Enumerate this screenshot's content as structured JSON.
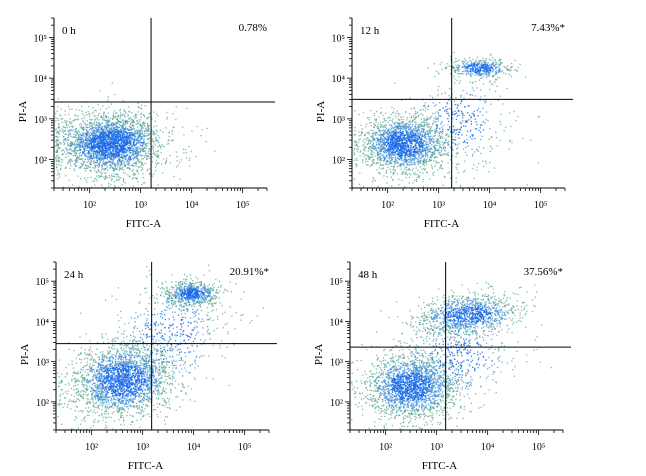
{
  "chart_data": [
    {
      "type": "scatter",
      "panel_label": "0 h",
      "percentage_label": "0.78%",
      "xlabel": "FITC-A",
      "ylabel": "PI-A",
      "x_scale": "log",
      "y_scale": "log",
      "xlim": [
        20,
        300000
      ],
      "ylim": [
        20,
        300000
      ],
      "x_ticks": [
        "10²",
        "10³",
        "10⁴",
        "10⁵"
      ],
      "y_ticks": [
        "10²",
        "10³",
        "10⁴",
        "10⁵"
      ],
      "x_tick_values": [
        100,
        1000,
        10000,
        100000
      ],
      "y_tick_values": [
        100,
        1000,
        10000,
        100000
      ],
      "gate": {
        "x": 1600,
        "y": 2600
      },
      "upper_right_percent": 0.78,
      "populations": [
        {
          "cx": 250,
          "cy": 250,
          "sx": 0.45,
          "sy": 0.35,
          "n": 2400,
          "rho": 0.0
        },
        {
          "cx": 250,
          "cy": 250,
          "sx": 0.75,
          "sy": 0.5,
          "n": 500,
          "rho": 0.0
        }
      ]
    },
    {
      "type": "scatter",
      "panel_label": "12 h",
      "percentage_label": "7.43%*",
      "xlabel": "FITC-A",
      "ylabel": "PI-A",
      "x_scale": "log",
      "y_scale": "log",
      "xlim": [
        20,
        300000
      ],
      "ylim": [
        20,
        300000
      ],
      "x_ticks": [
        "10²",
        "10³",
        "10⁴",
        "10⁵"
      ],
      "y_ticks": [
        "10²",
        "10³",
        "10⁴",
        "10⁵"
      ],
      "x_tick_values": [
        100,
        1000,
        10000,
        100000
      ],
      "y_tick_values": [
        100,
        1000,
        10000,
        100000
      ],
      "gate": {
        "x": 1800,
        "y": 3000
      },
      "upper_right_percent": 7.43,
      "populations": [
        {
          "cx": 200,
          "cy": 250,
          "sx": 0.42,
          "sy": 0.35,
          "n": 2000,
          "rho": 0.0
        },
        {
          "cx": 6000,
          "cy": 18000,
          "sx": 0.3,
          "sy": 0.12,
          "n": 450,
          "rho": 0.0
        },
        {
          "cx": 2500,
          "cy": 800,
          "sx": 0.55,
          "sy": 0.6,
          "n": 350,
          "rho": 0.0
        }
      ]
    },
    {
      "type": "scatter",
      "panel_label": "24 h",
      "percentage_label": "20.91%*",
      "xlabel": "FITC-A",
      "ylabel": "PI-A",
      "x_scale": "log",
      "y_scale": "log",
      "xlim": [
        20,
        300000
      ],
      "ylim": [
        20,
        300000
      ],
      "x_ticks": [
        "10²",
        "10³",
        "10⁴",
        "10⁵"
      ],
      "y_ticks": [
        "10²",
        "10³",
        "10⁴",
        "10⁵"
      ],
      "x_tick_values": [
        100,
        1000,
        10000,
        100000
      ],
      "y_tick_values": [
        100,
        1000,
        10000,
        100000
      ],
      "gate": {
        "x": 1500,
        "y": 2800
      },
      "upper_right_percent": 20.91,
      "populations": [
        {
          "cx": 400,
          "cy": 350,
          "sx": 0.5,
          "sy": 0.45,
          "n": 2300,
          "rho": 0.2
        },
        {
          "cx": 9000,
          "cy": 50000,
          "sx": 0.25,
          "sy": 0.15,
          "n": 650,
          "rho": 0.0
        },
        {
          "cx": 3000,
          "cy": 4000,
          "sx": 0.6,
          "sy": 0.7,
          "n": 550,
          "rho": 0.3
        }
      ]
    },
    {
      "type": "scatter",
      "panel_label": "48 h",
      "percentage_label": "37.56%*",
      "xlabel": "FITC-A",
      "ylabel": "PI-A",
      "x_scale": "log",
      "y_scale": "log",
      "xlim": [
        20,
        300000
      ],
      "ylim": [
        20,
        300000
      ],
      "x_ticks": [
        "10²",
        "10³",
        "10⁴",
        "10⁵"
      ],
      "y_ticks": [
        "10²",
        "10³",
        "10⁴",
        "10⁵"
      ],
      "x_tick_values": [
        100,
        1000,
        10000,
        100000
      ],
      "y_tick_values": [
        100,
        1000,
        10000,
        100000
      ],
      "gate": {
        "x": 1500,
        "y": 2300
      },
      "upper_right_percent": 37.56,
      "populations": [
        {
          "cx": 300,
          "cy": 250,
          "sx": 0.45,
          "sy": 0.4,
          "n": 2000,
          "rho": 0.0
        },
        {
          "cx": 4000,
          "cy": 15000,
          "sx": 0.5,
          "sy": 0.25,
          "n": 1100,
          "rho": 0.3
        },
        {
          "cx": 2500,
          "cy": 1500,
          "sx": 0.6,
          "sy": 0.6,
          "n": 500,
          "rho": 0.2
        }
      ]
    }
  ],
  "colors": {
    "dense": "#1a6be8",
    "mid": "#3f8fcf",
    "sparse": "#4d9e8f",
    "axis": "#000000",
    "gate": "#000000"
  }
}
